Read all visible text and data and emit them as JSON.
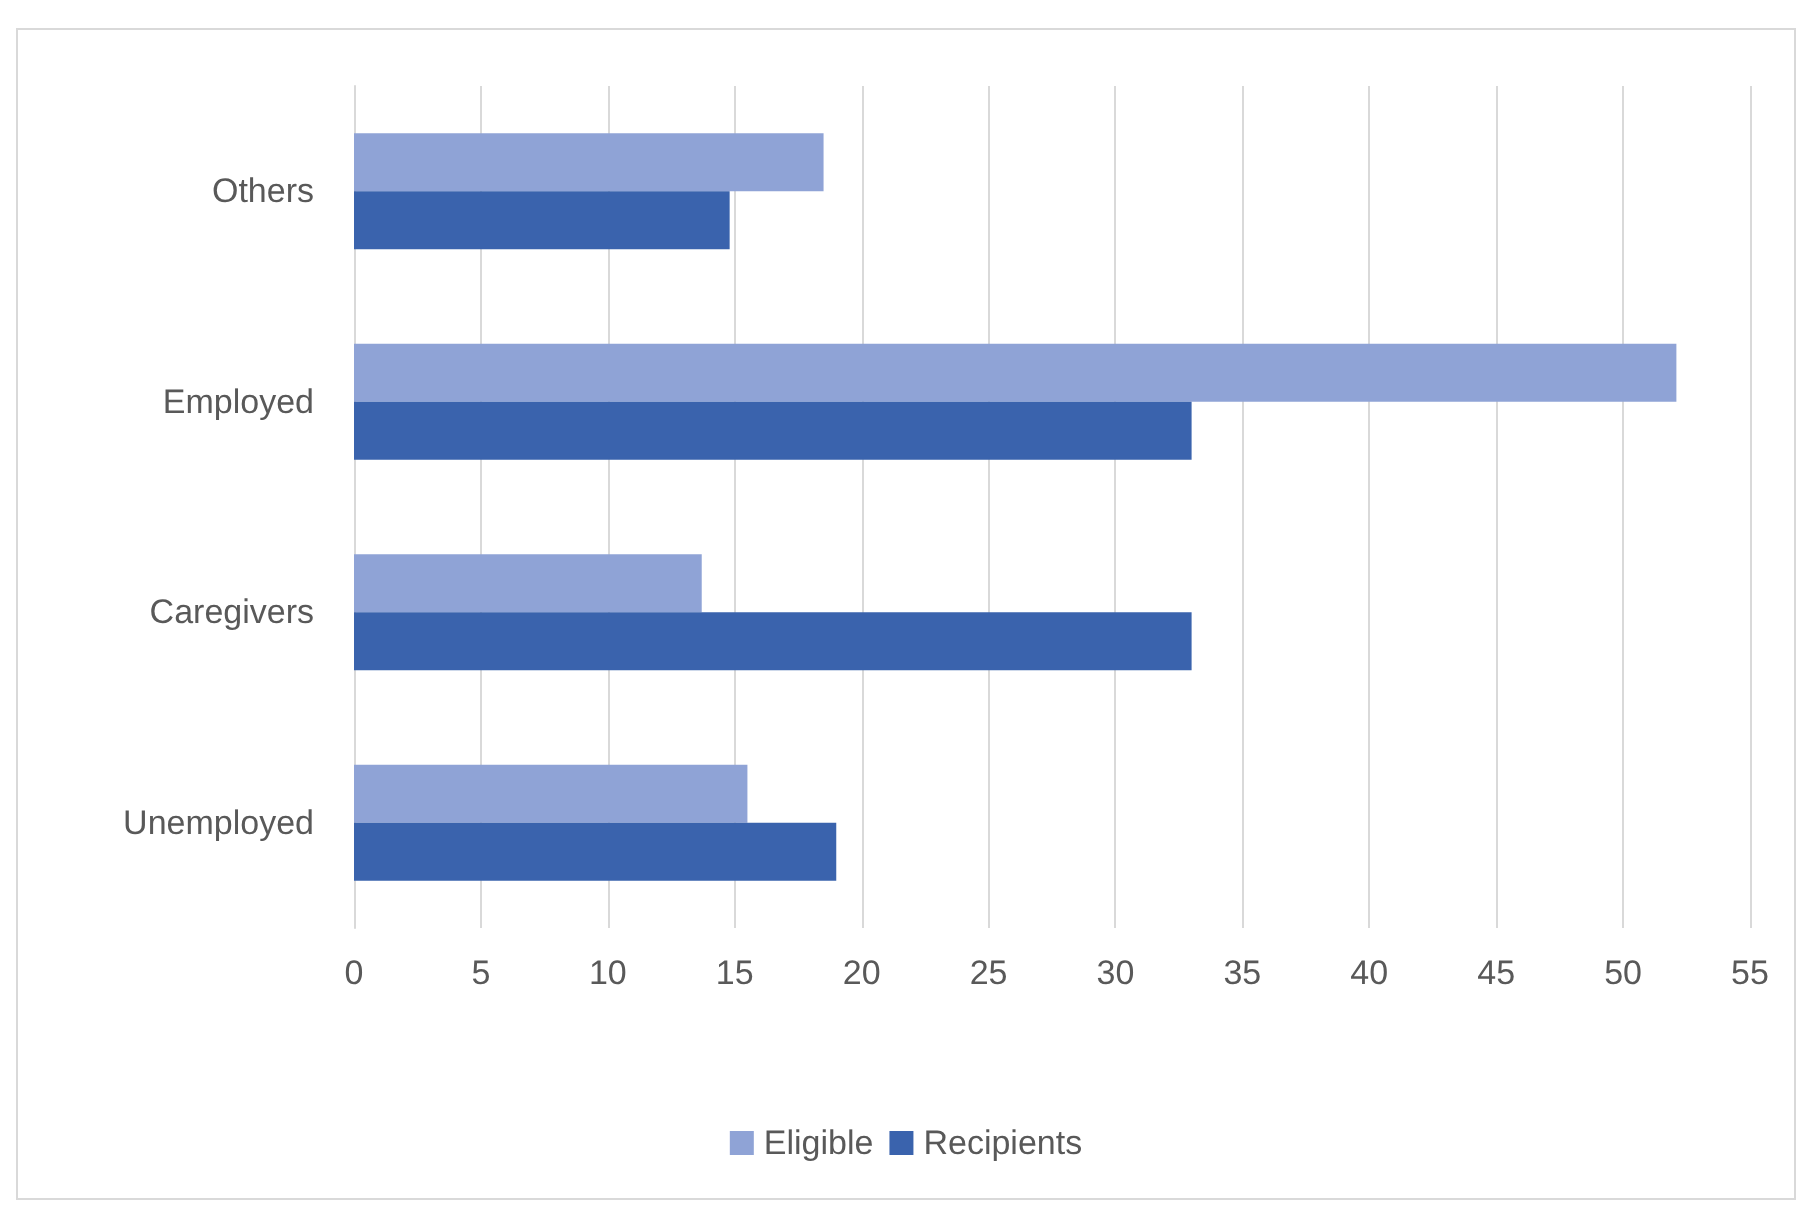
{
  "chart_data": {
    "type": "bar",
    "orientation": "horizontal",
    "categories": [
      "Others",
      "Employed",
      "Caregivers",
      "Unemployed"
    ],
    "series": [
      {
        "name": "Eligible",
        "color": "#8fa3d6",
        "values": [
          18.5,
          52.1,
          13.7,
          15.5
        ]
      },
      {
        "name": "Recipients",
        "color": "#3a63ad",
        "values": [
          14.8,
          33,
          33,
          19
        ]
      }
    ],
    "xlim": [
      0,
      55
    ],
    "xticks": [
      0,
      5,
      10,
      15,
      20,
      25,
      30,
      35,
      40,
      45,
      50,
      55
    ],
    "grid": "x",
    "legend": "bottom"
  }
}
